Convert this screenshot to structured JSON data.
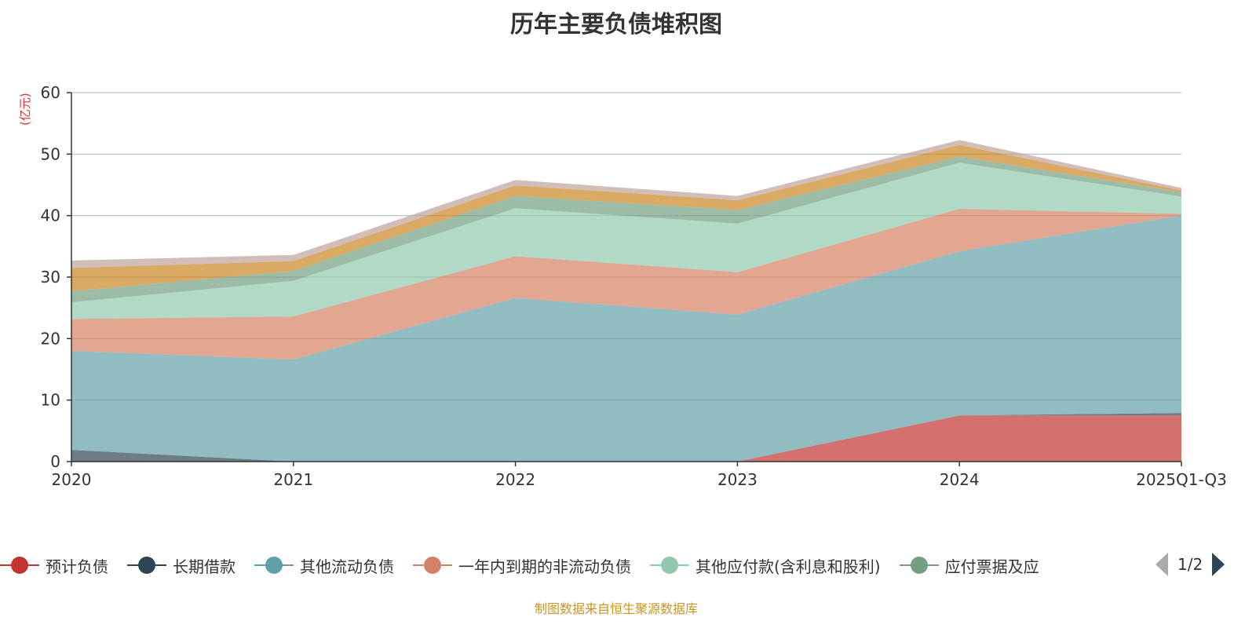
{
  "title": "历年主要负债堆积图",
  "unit": "(亿元)",
  "source": "制图数据来自恒生聚源数据库",
  "pager": {
    "label": "1/2"
  },
  "chart_data": {
    "type": "area",
    "stacked": true,
    "title": "历年主要负债堆积图",
    "ylabel": "(亿元)",
    "ylim": [
      0,
      60
    ],
    "yticks": [
      0,
      10,
      20,
      30,
      40,
      50,
      60
    ],
    "grid": true,
    "legend_position": "bottom",
    "categories": [
      "2020",
      "2021",
      "2022",
      "2023",
      "2024",
      "2025Q1-Q3"
    ],
    "series": [
      {
        "name": "预计负债",
        "color": "#c23531",
        "values": [
          0,
          0,
          0,
          0,
          7.5,
          7.5
        ]
      },
      {
        "name": "长期借款",
        "color": "#2f4554",
        "values": [
          1.9,
          0,
          0,
          0,
          0,
          0.4
        ]
      },
      {
        "name": "其他流动负债",
        "color": "#61a0a8",
        "values": [
          16.1,
          16.6,
          26.6,
          23.9,
          26.7,
          32.1
        ]
      },
      {
        "name": "一年内到期的非流动负债",
        "color": "#d48265",
        "values": [
          5.2,
          7.0,
          6.8,
          6.9,
          6.9,
          0.3
        ]
      },
      {
        "name": "其他应付款(含利息和股利)",
        "color": "#91c7ae",
        "values": [
          2.7,
          5.8,
          7.8,
          7.9,
          7.5,
          2.8
        ]
      },
      {
        "name": "应付票据及应",
        "color": "#749f83",
        "values": [
          1.8,
          1.6,
          2.0,
          2.2,
          1.0,
          0.7
        ]
      },
      {
        "name": "",
        "color": "#ca8622",
        "values": [
          3.8,
          1.6,
          1.7,
          1.6,
          1.9,
          0.3
        ]
      },
      {
        "name": "",
        "color": "#bda29a",
        "values": [
          1.2,
          1.0,
          0.9,
          0.7,
          0.8,
          0.4
        ]
      }
    ]
  }
}
